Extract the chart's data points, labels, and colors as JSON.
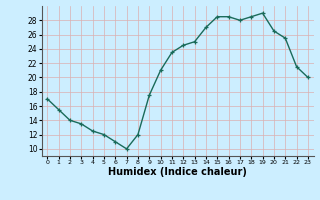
{
  "x": [
    0,
    1,
    2,
    3,
    4,
    5,
    6,
    7,
    8,
    9,
    10,
    11,
    12,
    13,
    14,
    15,
    16,
    17,
    18,
    19,
    20,
    21,
    22,
    23
  ],
  "y": [
    17,
    15.5,
    14,
    13.5,
    12.5,
    12,
    11,
    10,
    12,
    17.5,
    21,
    23.5,
    24.5,
    25,
    27,
    28.5,
    28.5,
    28,
    28.5,
    29,
    26.5,
    25.5,
    21.5,
    20
  ],
  "line_color": "#1a6b5a",
  "marker": "+",
  "bg_color": "#cceeff",
  "grid_color": "#dbb0b0",
  "xlabel": "Humidex (Indice chaleur)",
  "xlabel_fontsize": 7,
  "ylabel_ticks": [
    10,
    12,
    14,
    16,
    18,
    20,
    22,
    24,
    26,
    28
  ],
  "ylim": [
    9,
    30
  ],
  "xlim": [
    -0.5,
    23.5
  ],
  "xtick_labels": [
    "0",
    "1",
    "2",
    "3",
    "4",
    "5",
    "6",
    "7",
    "8",
    "9",
    "10",
    "11",
    "12",
    "13",
    "14",
    "15",
    "16",
    "17",
    "18",
    "19",
    "20",
    "21",
    "22",
    "23"
  ]
}
